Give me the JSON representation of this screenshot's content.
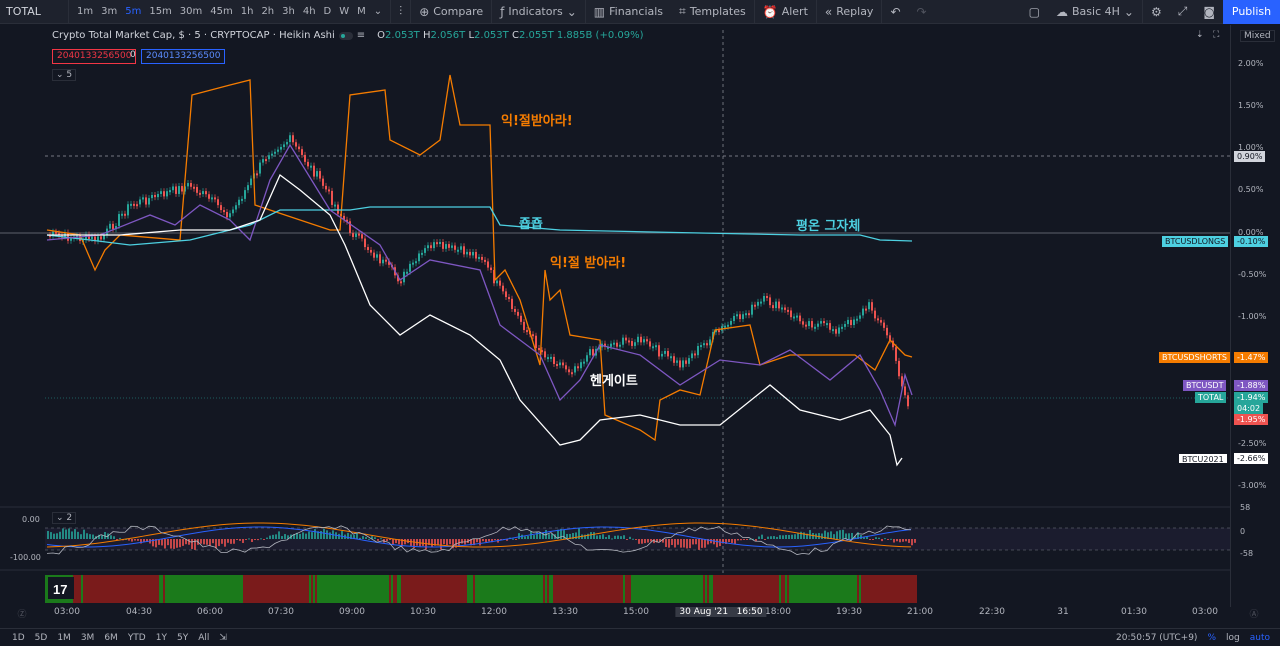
{
  "toolbar": {
    "symbol": "TOTAL",
    "timeframes": [
      "1m",
      "3m",
      "5m",
      "15m",
      "30m",
      "45m",
      "1h",
      "2h",
      "3h",
      "4h",
      "D",
      "W",
      "M"
    ],
    "active_timeframe": "5m",
    "compare": "Compare",
    "indicators": "Indicators",
    "financials": "Financials",
    "templates": "Templates",
    "alert": "Alert",
    "replay": "Replay",
    "layout": "Basic 4H",
    "publish": "Publish"
  },
  "legend": {
    "title": "Crypto Total Market Cap, $ · 5 · CRYPTOCAP · Heikin Ashi",
    "o_label": "O",
    "o": "2.053T",
    "h_label": "H",
    "h": "2.056T",
    "l_label": "L",
    "l": "2.053T",
    "c_label": "C",
    "c": "2.055T",
    "change": "1.885B (+0.09%)",
    "input_left": "2040133256500",
    "input_mid": "0",
    "input_right": "2040133256500",
    "collapse_count": "5",
    "mixed": "Mixed",
    "indicator_count": "2"
  },
  "price_axis": {
    "labels": [
      "2.00%",
      "1.50%",
      "1.00%",
      "0.50%",
      "0.00%",
      "-0.50%",
      "-1.00%",
      "-2.50%",
      "-3.00%"
    ],
    "marker_090": "0.90%",
    "osc_labels": [
      "58",
      "0",
      "-58"
    ],
    "osc_left_top": "0.00",
    "osc_left_bottom": "-100.00"
  },
  "tags": {
    "longs_name": "BTCUSDLONGS",
    "longs_val": "-0.10%",
    "shorts_name": "BTCUSDSHORTS",
    "shorts_val": "-1.47%",
    "btcusdt_name": "BTCUSDT",
    "btcusdt_val": "-1.88%",
    "total_name": "TOTAL",
    "total_val": "-1.94%",
    "total_time": "04:02",
    "red_val": "-1.95%",
    "btcu_name": "BTCU2021",
    "btcu_val": "-2.66%"
  },
  "annotations": {
    "a1": "익!절받아라!",
    "a2": "죱죱",
    "a3": "익!절 받아라!",
    "a4": "평온 그자체",
    "a5": "헨게이트"
  },
  "time_axis": {
    "labels": [
      "03:00",
      "04:30",
      "06:00",
      "07:30",
      "09:00",
      "10:30",
      "12:00",
      "13:30",
      "15:00",
      "18:00",
      "19:30",
      "21:00",
      "22:30",
      "31",
      "01:30",
      "03:00"
    ],
    "crosshair": "30 Aug '21   16:50"
  },
  "bottom": {
    "ranges": [
      "1D",
      "5D",
      "1M",
      "3M",
      "6M",
      "YTD",
      "1Y",
      "5Y",
      "All"
    ],
    "clock": "20:50:57 (UTC+9)",
    "pct": "%",
    "log": "log",
    "auto": "auto"
  },
  "colors": {
    "orange": "#f57c00",
    "cyan": "#4dd0e1",
    "purple": "#7e57c2",
    "white": "#ffffff",
    "up": "#26a69a",
    "down": "#ef5350"
  }
}
